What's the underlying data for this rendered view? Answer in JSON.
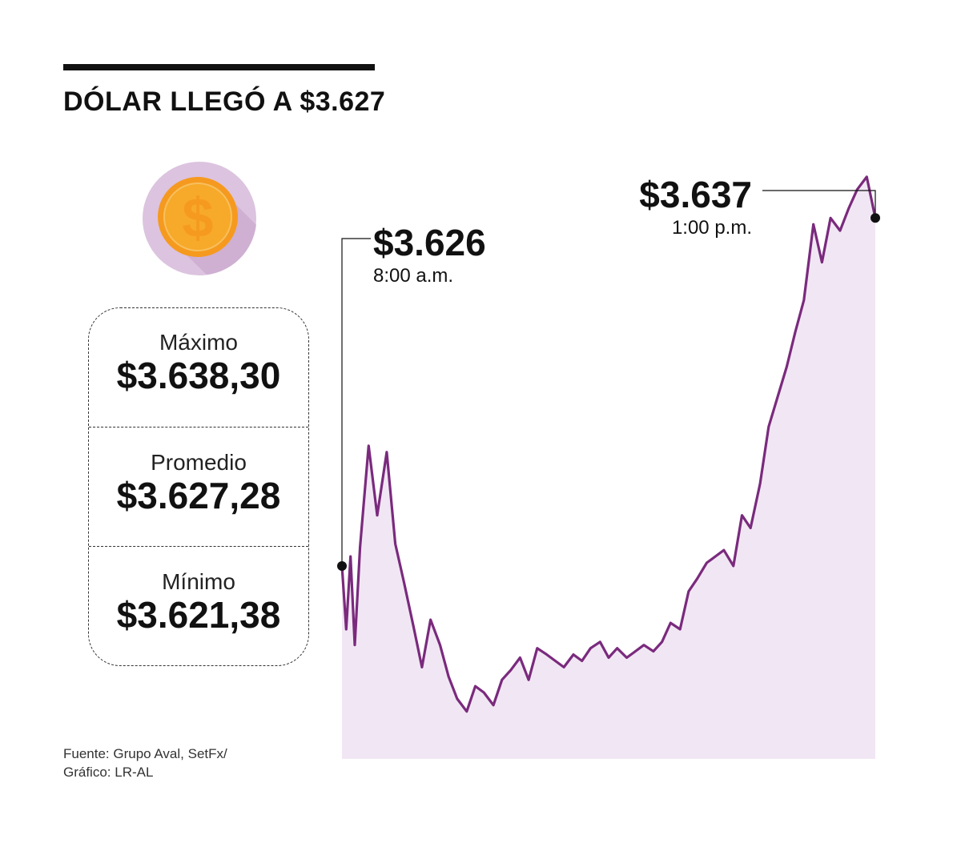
{
  "title": "DÓLAR LLEGÓ A $3.627",
  "icon": "dollar-coin-icon",
  "colors": {
    "line": "#7a2a7d",
    "area": "#f1e7f4",
    "coin_bg": "#dcc3df",
    "coin": "#f59a1f"
  },
  "stats": {
    "max_label": "Máximo",
    "max_value": "$3.638,30",
    "avg_label": "Promedio",
    "avg_value": "$3.627,28",
    "min_label": "Mínimo",
    "min_value": "$3.621,38"
  },
  "source_line1": "Fuente: Grupo Aval, SetFx/",
  "source_line2": "Gráfico: LR-AL",
  "chart_data": {
    "type": "area",
    "x_unit": "hour of trading day",
    "x": [
      8.0,
      8.04,
      8.08,
      8.12,
      8.17,
      8.25,
      8.33,
      8.42,
      8.5,
      8.58,
      8.67,
      8.75,
      8.83,
      8.92,
      9.0,
      9.08,
      9.17,
      9.25,
      9.33,
      9.42,
      9.5,
      9.58,
      9.67,
      9.75,
      9.83,
      9.92,
      10.0,
      10.08,
      10.17,
      10.25,
      10.33,
      10.42,
      10.5,
      10.58,
      10.67,
      10.75,
      10.83,
      10.92,
      11.0,
      11.08,
      11.17,
      11.25,
      11.33,
      11.42,
      11.5,
      11.58,
      11.67,
      11.75,
      11.83,
      11.92,
      12.0,
      12.08,
      12.17,
      12.25,
      12.33,
      12.42,
      12.5,
      12.58,
      12.67,
      12.75,
      12.83,
      12.92,
      13.0
    ],
    "y": [
      3626.0,
      3624.0,
      3626.3,
      3623.5,
      3626.6,
      3629.8,
      3627.6,
      3629.6,
      3626.7,
      3625.5,
      3624.1,
      3622.8,
      3624.3,
      3623.5,
      3622.5,
      3621.8,
      3621.4,
      3622.2,
      3622.0,
      3621.6,
      3622.4,
      3622.7,
      3623.1,
      3622.4,
      3623.4,
      3623.2,
      3623.0,
      3622.8,
      3623.2,
      3623.0,
      3623.4,
      3623.6,
      3623.1,
      3623.4,
      3623.1,
      3623.3,
      3623.5,
      3623.3,
      3623.6,
      3624.2,
      3624.0,
      3625.2,
      3625.6,
      3626.1,
      3626.3,
      3626.5,
      3626.0,
      3627.6,
      3627.2,
      3628.6,
      3630.4,
      3631.3,
      3632.3,
      3633.4,
      3634.4,
      3636.8,
      3635.6,
      3637.0,
      3636.6,
      3637.3,
      3637.9,
      3638.3,
      3637.0
    ],
    "ylim": [
      3619.9,
      3640.6
    ],
    "annotations": [
      {
        "price": "$3.626",
        "time": "8:00 a.m.",
        "x": 8.0,
        "y": 3626.0
      },
      {
        "price": "$3.637",
        "time": "1:00 p.m.",
        "x": 13.0,
        "y": 3637.0
      }
    ],
    "grid": false,
    "legend": "none"
  }
}
